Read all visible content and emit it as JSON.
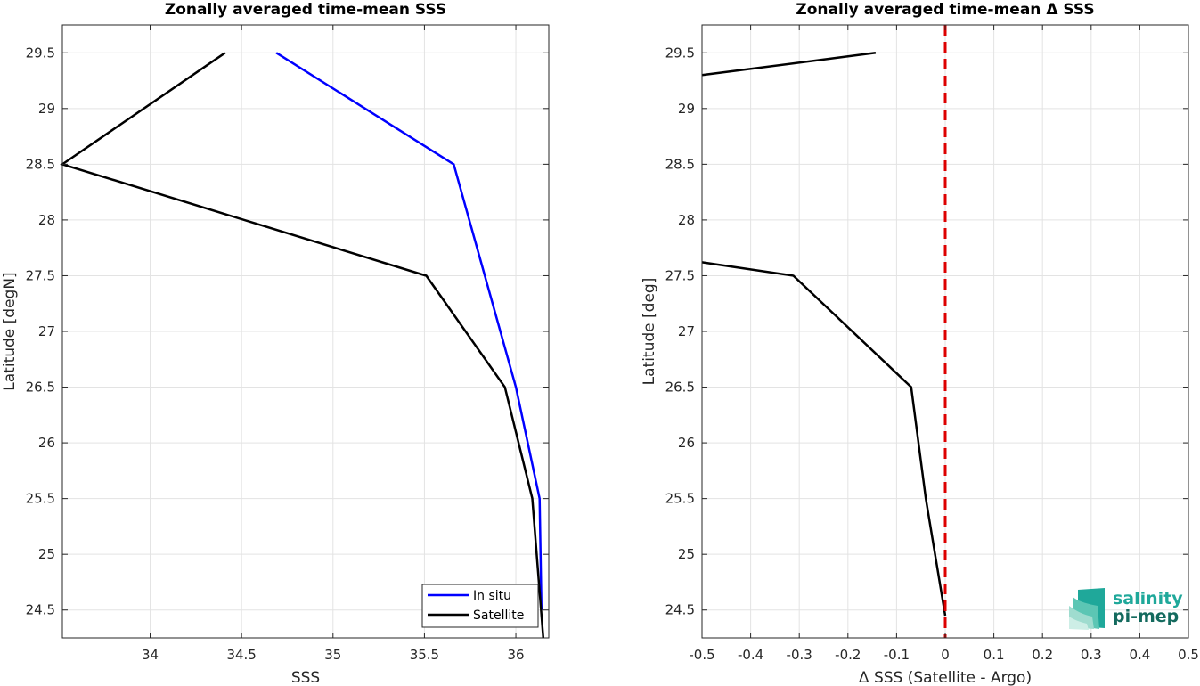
{
  "chart_data": [
    {
      "type": "line",
      "title": "Zonally averaged time-mean SSS",
      "xlabel": "SSS",
      "ylabel": "Latitude [degN]",
      "xlim": [
        33.52,
        36.18
      ],
      "ylim": [
        24.25,
        29.75
      ],
      "xticks": [
        34,
        34.5,
        35,
        35.5,
        36
      ],
      "xtick_labels": [
        "34",
        "34.5",
        "35",
        "35.5",
        "36"
      ],
      "yticks": [
        24.5,
        25,
        25.5,
        26,
        26.5,
        27,
        27.5,
        28,
        28.5,
        29,
        29.5
      ],
      "ytick_labels": [
        "24.5",
        "25",
        "25.5",
        "26",
        "26.5",
        "27",
        "27.5",
        "28",
        "28.5",
        "29",
        "29.5"
      ],
      "grid": true,
      "legend_position": "bottom-right",
      "series": [
        {
          "name": "In situ",
          "color": "#0000ff",
          "points": [
            {
              "x": 34.69,
              "y": 29.5
            },
            {
              "x": 35.66,
              "y": 28.5
            },
            {
              "x": 36.0,
              "y": 26.5
            },
            {
              "x": 36.13,
              "y": 25.5
            },
            {
              "x": 36.14,
              "y": 24.5
            }
          ]
        },
        {
          "name": "Satellite",
          "color": "#000000",
          "points": [
            {
              "x": 34.41,
              "y": 29.5
            },
            {
              "x": 33.52,
              "y": 28.5
            },
            {
              "x": 35.51,
              "y": 27.5
            },
            {
              "x": 35.94,
              "y": 26.5
            },
            {
              "x": 36.09,
              "y": 25.5
            },
            {
              "x": 36.15,
              "y": 24.25
            }
          ]
        }
      ]
    },
    {
      "type": "line",
      "title": "Zonally averaged time-mean Δ SSS",
      "xlabel": "Δ SSS (Satellite - Argo)",
      "ylabel": "Latitude [deg]",
      "xlim": [
        -0.5,
        0.5
      ],
      "ylim": [
        24.25,
        29.75
      ],
      "xticks": [
        -0.5,
        -0.4,
        -0.3,
        -0.2,
        -0.1,
        0,
        0.1,
        0.2,
        0.3,
        0.4,
        0.5
      ],
      "xtick_labels": [
        "-0.5",
        "-0.4",
        "-0.3",
        "-0.2",
        "-0.1",
        "0",
        "0.1",
        "0.2",
        "0.3",
        "0.4",
        "0.5"
      ],
      "yticks": [
        24.5,
        25,
        25.5,
        26,
        26.5,
        27,
        27.5,
        28,
        28.5,
        29,
        29.5
      ],
      "ytick_labels": [
        "24.5",
        "25",
        "25.5",
        "26",
        "26.5",
        "27",
        "27.5",
        "28",
        "28.5",
        "29",
        "29.5"
      ],
      "grid": true,
      "series": [
        {
          "color": "#000000",
          "segments": [
            [
              {
                "x": -0.5,
                "y": 29.3
              },
              {
                "x": -0.143,
                "y": 29.5
              }
            ],
            [
              {
                "x": -0.5,
                "y": 27.62
              },
              {
                "x": -0.312,
                "y": 27.5
              },
              {
                "x": -0.07,
                "y": 26.5
              },
              {
                "x": -0.04,
                "y": 25.5
              },
              {
                "x": 0.0,
                "y": 24.45
              }
            ]
          ]
        }
      ],
      "reference_line": {
        "x": 0,
        "color": "#dd0000",
        "style": "dashed"
      }
    }
  ],
  "logo": {
    "line1": "salinity",
    "line2": "pi-mep",
    "color1": "#1fa89a",
    "color2": "#146a5e"
  }
}
